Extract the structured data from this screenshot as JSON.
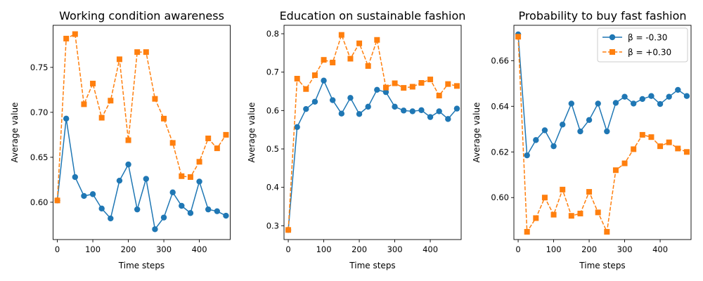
{
  "chart_data": [
    {
      "type": "line",
      "title": "Working condition awareness",
      "xlabel": "Time steps",
      "ylabel": "Average value",
      "xlim": [
        -12,
        487
      ],
      "ylim": [
        0.5585,
        0.7968
      ],
      "xticks": [
        0,
        100,
        200,
        300,
        400
      ],
      "yticks": [
        0.6,
        0.65,
        0.7,
        0.75
      ],
      "ytick_labels": [
        "0.60",
        "0.65",
        "0.70",
        "0.75"
      ],
      "x": [
        0,
        25,
        50,
        75,
        100,
        125,
        150,
        175,
        200,
        225,
        250,
        275,
        300,
        325,
        350,
        375,
        400,
        425,
        450,
        475
      ],
      "series": [
        {
          "name": "β = -0.30",
          "color": "#1f77b4",
          "linestyle": "solid",
          "marker": "circle",
          "values": [
            0.602,
            0.693,
            0.628,
            0.607,
            0.609,
            0.593,
            0.582,
            0.624,
            0.642,
            0.592,
            0.626,
            0.57,
            0.583,
            0.611,
            0.596,
            0.588,
            0.623,
            0.592,
            0.59,
            0.585
          ]
        },
        {
          "name": "β = +0.30",
          "color": "#ff7f0e",
          "linestyle": "dashed",
          "marker": "square",
          "values": [
            0.602,
            0.782,
            0.787,
            0.709,
            0.732,
            0.694,
            0.713,
            0.759,
            0.669,
            0.767,
            0.767,
            0.715,
            0.693,
            0.666,
            0.629,
            0.628,
            0.645,
            0.671,
            0.66,
            0.675
          ]
        }
      ]
    },
    {
      "type": "line",
      "title": "Education on sustainable fashion",
      "xlabel": "Time steps",
      "ylabel": "Average value",
      "xlim": [
        -12,
        487
      ],
      "ylim": [
        0.264,
        0.822
      ],
      "xticks": [
        0,
        100,
        200,
        300,
        400
      ],
      "yticks": [
        0.3,
        0.4,
        0.5,
        0.6,
        0.7,
        0.8
      ],
      "ytick_labels": [
        "0.3",
        "0.4",
        "0.5",
        "0.6",
        "0.7",
        "0.8"
      ],
      "x": [
        0,
        25,
        50,
        75,
        100,
        125,
        150,
        175,
        200,
        225,
        250,
        275,
        300,
        325,
        350,
        375,
        400,
        425,
        450,
        475
      ],
      "series": [
        {
          "name": "β = -0.30",
          "color": "#1f77b4",
          "linestyle": "solid",
          "marker": "circle",
          "values": [
            0.289,
            0.557,
            0.604,
            0.623,
            0.678,
            0.627,
            0.592,
            0.633,
            0.591,
            0.61,
            0.654,
            0.648,
            0.61,
            0.6,
            0.598,
            0.601,
            0.583,
            0.598,
            0.578,
            0.605
          ]
        },
        {
          "name": "β = +0.30",
          "color": "#ff7f0e",
          "linestyle": "dashed",
          "marker": "square",
          "values": [
            0.289,
            0.683,
            0.656,
            0.692,
            0.732,
            0.725,
            0.797,
            0.735,
            0.775,
            0.716,
            0.784,
            0.66,
            0.671,
            0.659,
            0.662,
            0.672,
            0.681,
            0.639,
            0.669,
            0.664
          ]
        }
      ]
    },
    {
      "type": "line",
      "title": "Probability to buy fast fashion",
      "xlabel": "Time steps",
      "ylabel": "Average value",
      "xlim": [
        -12,
        487
      ],
      "ylim": [
        0.5816,
        0.6755
      ],
      "xticks": [
        0,
        100,
        200,
        300,
        400
      ],
      "yticks": [
        0.6,
        0.62,
        0.64,
        0.66
      ],
      "ytick_labels": [
        "0.60",
        "0.62",
        "0.64",
        "0.66"
      ],
      "legend_loc": "top-right",
      "x": [
        0,
        25,
        50,
        75,
        100,
        125,
        150,
        175,
        200,
        225,
        250,
        275,
        300,
        325,
        350,
        375,
        400,
        425,
        450,
        475
      ],
      "series": [
        {
          "name": "β = -0.30",
          "color": "#1f77b4",
          "linestyle": "solid",
          "marker": "circle",
          "values": [
            0.6715,
            0.6185,
            0.6252,
            0.6295,
            0.6225,
            0.632,
            0.6412,
            0.629,
            0.634,
            0.6412,
            0.629,
            0.6415,
            0.6442,
            0.6412,
            0.6432,
            0.6445,
            0.641,
            0.6442,
            0.6472,
            0.6445
          ]
        },
        {
          "name": "β = +0.30",
          "color": "#ff7f0e",
          "linestyle": "dashed",
          "marker": "square",
          "values": [
            0.6705,
            0.585,
            0.591,
            0.6,
            0.5925,
            0.6035,
            0.592,
            0.593,
            0.6025,
            0.5935,
            0.585,
            0.612,
            0.615,
            0.6212,
            0.6275,
            0.6265,
            0.6225,
            0.6242,
            0.6215,
            0.62
          ]
        }
      ]
    }
  ]
}
